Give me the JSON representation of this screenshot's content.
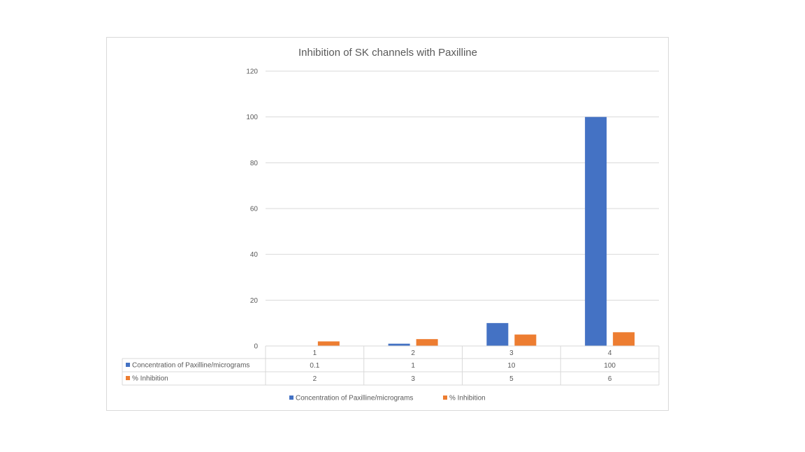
{
  "chart_data": {
    "type": "bar",
    "title": "Inhibition of SK channels with Paxilline",
    "xlabel": "",
    "ylabel": "",
    "categories": [
      "1",
      "2",
      "3",
      "4"
    ],
    "ylim": [
      0,
      120
    ],
    "yticks": [
      0,
      20,
      40,
      60,
      80,
      100,
      120
    ],
    "grid": true,
    "legend": "bottom",
    "data_table": true,
    "series": [
      {
        "name": "Concentration of Paxilline/micrograms",
        "values": [
          0.1,
          1,
          10,
          100
        ],
        "color": "#4472C4"
      },
      {
        "name": "% Inhibition",
        "values": [
          2,
          3,
          5,
          6
        ],
        "color": "#ED7D31"
      }
    ]
  }
}
